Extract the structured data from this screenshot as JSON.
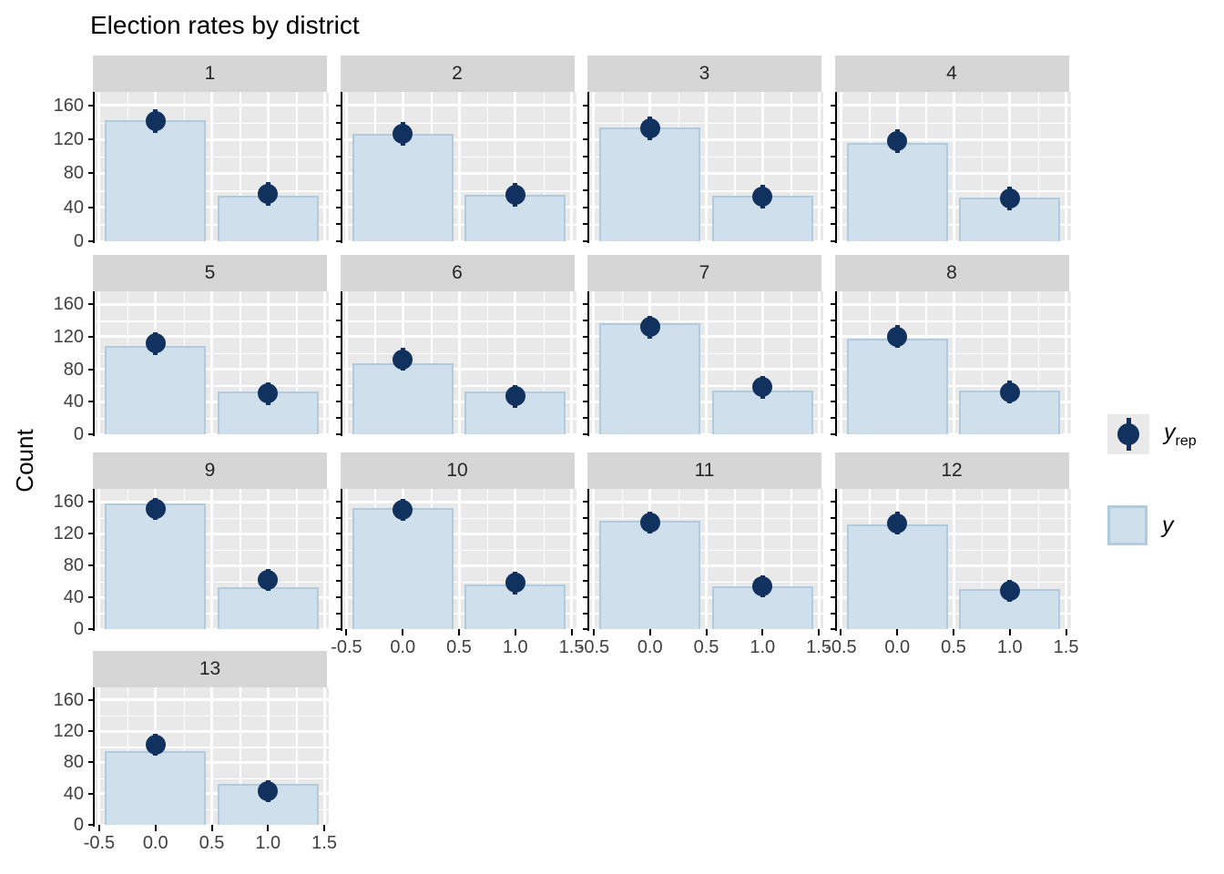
{
  "title": "Election rates by district",
  "y_axis_title": "Count",
  "legend": {
    "yrep_main": "y",
    "yrep_sub": "rep",
    "y_label": "y"
  },
  "colors": {
    "bar_fill": "#cfdfec",
    "bar_border": "#b0cbde",
    "point": "#11315f",
    "panel_bg": "#e9e9e9",
    "strip_bg": "#d6d6d6",
    "grid": "#ffffff",
    "axis_text": "#404040",
    "axis_line": "#000000"
  },
  "chart_data": {
    "type": "bar",
    "title": "Election rates by district",
    "xlabel": "",
    "ylabel": "Count",
    "grid": true,
    "legend_position": "right",
    "legend_entries": [
      "y_rep",
      "y"
    ],
    "x": [
      0,
      1
    ],
    "x_ticks": [
      "-0.5",
      "0.0",
      "0.5",
      "1.0",
      "1.5"
    ],
    "x_tick_values": [
      -0.5,
      0.0,
      0.5,
      1.0,
      1.5
    ],
    "y_ticks": [
      0,
      40,
      80,
      120,
      160
    ],
    "y_minor_ticks": [
      20,
      60,
      100,
      140
    ],
    "xlim": [
      -0.54,
      1.54
    ],
    "ylim": [
      0,
      176
    ],
    "bar_width": 0.9,
    "point_interval_halfwidth": 14,
    "facets": [
      {
        "label": "1",
        "y": [
          143,
          54
        ],
        "y_rep": [
          142,
          56
        ]
      },
      {
        "label": "2",
        "y": [
          127,
          55
        ],
        "y_rep": [
          127,
          55
        ]
      },
      {
        "label": "3",
        "y": [
          134,
          54
        ],
        "y_rep": [
          133,
          53
        ]
      },
      {
        "label": "4",
        "y": [
          116,
          52
        ],
        "y_rep": [
          118,
          50
        ]
      },
      {
        "label": "5",
        "y": [
          109,
          53
        ],
        "y_rep": [
          112,
          50
        ]
      },
      {
        "label": "6",
        "y": [
          88,
          53
        ],
        "y_rep": [
          92,
          47
        ]
      },
      {
        "label": "7",
        "y": [
          137,
          54
        ],
        "y_rep": [
          132,
          58
        ]
      },
      {
        "label": "8",
        "y": [
          118,
          54
        ],
        "y_rep": [
          120,
          52
        ]
      },
      {
        "label": "9",
        "y": [
          158,
          53
        ],
        "y_rep": [
          151,
          62
        ]
      },
      {
        "label": "10",
        "y": [
          152,
          56
        ],
        "y_rep": [
          150,
          58
        ]
      },
      {
        "label": "11",
        "y": [
          136,
          54
        ],
        "y_rep": [
          134,
          54
        ]
      },
      {
        "label": "12",
        "y": [
          131,
          50
        ],
        "y_rep": [
          133,
          48
        ]
      },
      {
        "label": "13",
        "y": [
          95,
          52
        ],
        "y_rep": [
          103,
          43
        ]
      }
    ]
  }
}
